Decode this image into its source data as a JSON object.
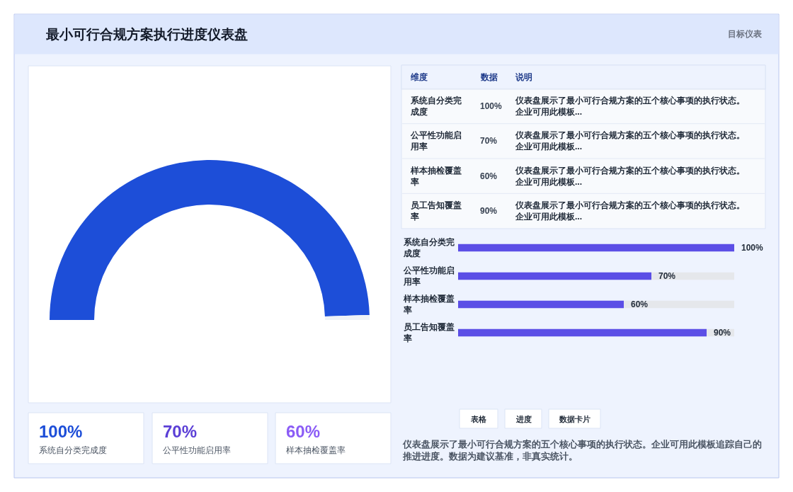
{
  "chart_data": [
    {
      "type": "donut",
      "title": "最小可行合规方案执行进度仪表盘",
      "annotations": [
        "目标仪表"
      ],
      "categories": [
        null,
        null
      ],
      "values": [
        99,
        1
      ],
      "colors": [
        "#1d4ed8",
        "#eef2f7"
      ]
    },
    {
      "type": "other",
      "categories": [
        "系统自分类完成度",
        "公平性功能启用率",
        "样本抽检覆盖率",
        "员工告知覆盖率"
      ],
      "value_labels": [
        "100%",
        "70%",
        "60%",
        "90%"
      ],
      "annotations": [
        "维度",
        "数据",
        "说明",
        "仪表盘展示了最小可行合规方案的五个核心事项的执行状态。企业可用此模板...",
        "仪表盘展示了最小可行合规方案的五个核心事项的执行状态。企业可用此模板...",
        "仪表盘展示了最小可行合规方案的五个核心事项的执行状态。企业可用此模板...",
        "仪表盘展示了最小可行合规方案的五个核心事项的执行状态。企业可用此模板..."
      ]
    },
    {
      "type": "bar",
      "orientation": "horizontal",
      "categories": [
        "系统自分类完成度",
        "公平性功能启用率",
        "样本抽检覆盖率",
        "员工告知覆盖率"
      ],
      "values": [
        100,
        70,
        60,
        90
      ],
      "value_labels": [
        "100%",
        "70%",
        "60%",
        "90%"
      ],
      "color": "#5b4ee6",
      "annotations": [
        "表格",
        "进度",
        "数据卡片",
        "仪表盘展示了最小可行合规方案的五个核心事项的执行状态。企业可用此模板追踪自己的推进进度。数据为建议基准，非真实统计。"
      ]
    },
    {
      "type": "other",
      "categories": [
        "系统自分类完成度",
        "公平性功能启用率",
        "样本抽检覆盖率"
      ],
      "value_labels": [
        "100%",
        "70%",
        "60%"
      ],
      "colors": [
        "#1d4ed8",
        "#5b3fd6",
        "#8b5cf6"
      ]
    }
  ]
}
